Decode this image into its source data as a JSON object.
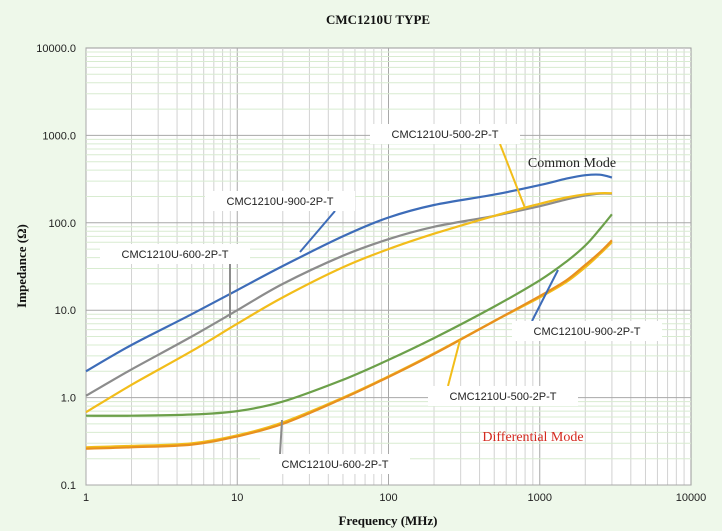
{
  "chart_data": {
    "type": "line",
    "title": "CMC1210U TYPE",
    "xlabel": "Frequency (MHz)",
    "ylabel": "Impedance (Ω)",
    "x_scale": "log",
    "y_scale": "log",
    "xlim": [
      1,
      10000
    ],
    "ylim": [
      0.1,
      10000
    ],
    "x_ticks": [
      "1",
      "10",
      "100",
      "1000",
      "10000"
    ],
    "y_ticks": [
      "0.1",
      "1.0",
      "10.0",
      "100.0",
      "1000.0",
      "10000.0"
    ],
    "grid": true,
    "plot_background": "#ffffff",
    "page_background": "#eef8ea",
    "group_labels": [
      {
        "text": "Common Mode",
        "color": "#222222"
      },
      {
        "text": "Differential Mode",
        "color": "#d42a1f"
      }
    ],
    "series": [
      {
        "name": "CMC1210U-900-2P-T",
        "mode": "Common Mode",
        "color": "#3d6cb8",
        "x": [
          1,
          2,
          5,
          10,
          20,
          50,
          100,
          200,
          500,
          1000,
          1500,
          2000,
          2500,
          3000
        ],
        "y": [
          2.0,
          4.0,
          9.0,
          17,
          32,
          70,
          115,
          160,
          210,
          270,
          320,
          350,
          355,
          330
        ]
      },
      {
        "name": "CMC1210U-600-2P-T",
        "mode": "Common Mode",
        "color": "#8c8c8c",
        "x": [
          1,
          2,
          5,
          10,
          20,
          50,
          100,
          200,
          500,
          1000,
          1500,
          2000,
          2500,
          3000
        ],
        "y": [
          1.05,
          2.1,
          5.0,
          10,
          20,
          42,
          65,
          90,
          120,
          155,
          185,
          205,
          215,
          215
        ]
      },
      {
        "name": "CMC1210U-500-2P-T",
        "mode": "Common Mode",
        "color": "#f2bd1a",
        "x": [
          1,
          2,
          5,
          10,
          20,
          50,
          100,
          200,
          500,
          1000,
          1500,
          2000,
          2500,
          3000
        ],
        "y": [
          0.68,
          1.4,
          3.4,
          7.0,
          14,
          31,
          50,
          75,
          120,
          165,
          195,
          212,
          218,
          218
        ]
      },
      {
        "name": "CMC1210U-900-2P-T",
        "mode": "Differential Mode",
        "color": "#6ca04a",
        "x": [
          1,
          2,
          5,
          10,
          20,
          50,
          100,
          200,
          500,
          1000,
          1500,
          2000,
          2500,
          3000
        ],
        "y": [
          0.62,
          0.62,
          0.64,
          0.7,
          0.9,
          1.6,
          2.7,
          4.8,
          11,
          22,
          36,
          55,
          85,
          125
        ]
      },
      {
        "name": "CMC1210U-500-2P-T",
        "mode": "Differential Mode",
        "color": "#f2bd1a",
        "x": [
          1,
          2,
          5,
          10,
          20,
          50,
          100,
          200,
          500,
          1000,
          1500,
          2000,
          2500,
          3000
        ],
        "y": [
          0.27,
          0.28,
          0.3,
          0.37,
          0.52,
          1.0,
          1.75,
          3.2,
          7.5,
          14,
          21,
          31,
          44,
          60
        ]
      },
      {
        "name": "CMC1210U-600-2P-T",
        "mode": "Differential Mode",
        "color": "#e8901e",
        "x": [
          1,
          2,
          5,
          10,
          20,
          50,
          100,
          200,
          500,
          1000,
          1500,
          2000,
          2500,
          3000
        ],
        "y": [
          0.26,
          0.27,
          0.29,
          0.36,
          0.5,
          0.98,
          1.72,
          3.15,
          7.5,
          14.5,
          22,
          33,
          46,
          63
        ]
      }
    ],
    "annotations": [
      {
        "text": "CMC1210U-500-2P-T",
        "series_index": 2,
        "line_color": "#f2bd1a"
      },
      {
        "text": "CMC1210U-900-2P-T",
        "series_index": 0,
        "line_color": "#3d6cb8"
      },
      {
        "text": "CMC1210U-600-2P-T",
        "series_index": 1,
        "line_color": "#8c8c8c"
      },
      {
        "text": "CMC1210U-900-2P-T",
        "series_index": 3,
        "line_color": "#3d6cb8"
      },
      {
        "text": "CMC1210U-500-2P-T",
        "series_index": 4,
        "line_color": "#f2bd1a"
      },
      {
        "text": "CMC1210U-600-2P-T",
        "series_index": 5,
        "line_color": "#8c8c8c"
      }
    ]
  }
}
